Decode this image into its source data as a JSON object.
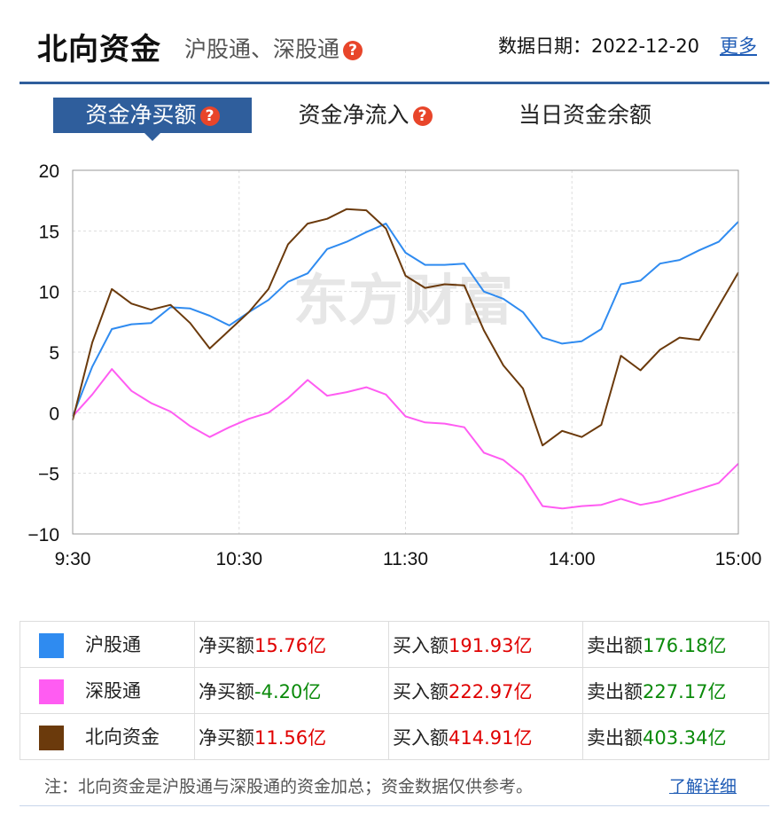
{
  "header": {
    "title": "北向资金",
    "subtitle": "沪股通、深股通",
    "date_label": "数据日期：2022-12-20",
    "more": "更多"
  },
  "tabs": [
    {
      "label": "资金净买额",
      "help": "?",
      "active": true
    },
    {
      "label": "资金净流入",
      "help": "?",
      "active": false
    },
    {
      "label": "当日资金余额",
      "active": false
    }
  ],
  "watermark": "东方财富",
  "chart_data": {
    "type": "line",
    "x_ticks": [
      "9:30",
      "10:30",
      "11:30",
      "14:00",
      "15:00"
    ],
    "y_ticks": [
      "20",
      "15",
      "10",
      "5",
      "0",
      "−5",
      "−10"
    ],
    "ylim": [
      -10,
      20
    ],
    "grid": true,
    "series": [
      {
        "name": "沪股通",
        "color": "#2f8bf0",
        "values": [
          -0.3,
          3.8,
          6.9,
          7.3,
          7.4,
          8.7,
          8.6,
          8.0,
          7.2,
          8.3,
          9.3,
          10.8,
          11.5,
          13.5,
          14.1,
          14.9,
          15.6,
          13.2,
          12.2,
          12.2,
          12.3,
          10.0,
          9.4,
          8.3,
          6.2,
          5.7,
          5.9,
          6.9,
          10.6,
          10.9,
          12.3,
          12.6,
          13.4,
          14.1,
          15.76
        ]
      },
      {
        "name": "深股通",
        "color": "#ff5cf2",
        "values": [
          -0.3,
          1.5,
          3.6,
          1.8,
          0.8,
          0.1,
          -1.1,
          -2.0,
          -1.2,
          -0.5,
          0.0,
          1.2,
          2.7,
          1.4,
          1.7,
          2.1,
          1.5,
          -0.3,
          -0.8,
          -0.9,
          -1.2,
          -3.3,
          -3.9,
          -5.2,
          -7.7,
          -7.9,
          -7.7,
          -7.6,
          -7.1,
          -7.6,
          -7.3,
          -6.8,
          -6.3,
          -5.8,
          -4.2
        ]
      },
      {
        "name": "北向资金",
        "color": "#6b3a0c",
        "values": [
          -0.6,
          5.8,
          10.2,
          9.0,
          8.5,
          8.9,
          7.4,
          5.3,
          6.8,
          8.3,
          10.2,
          13.9,
          15.6,
          16.0,
          16.8,
          16.7,
          15.2,
          11.3,
          10.3,
          10.6,
          10.5,
          6.8,
          3.9,
          2.0,
          -2.7,
          -1.5,
          -2.0,
          -1.0,
          4.7,
          3.5,
          5.2,
          6.2,
          6.0,
          8.8,
          11.56
        ]
      }
    ]
  },
  "legend": [
    {
      "name": "沪股通",
      "color": "#2f8bf0",
      "net_label": "净买额",
      "net": "15.76亿",
      "buy_label": "买入额",
      "buy": "191.93亿",
      "sell_label": "卖出额",
      "sell": "176.18亿"
    },
    {
      "name": "深股通",
      "color": "#ff5cf2",
      "net_label": "净买额",
      "net": "-4.20亿",
      "buy_label": "买入额",
      "buy": "222.97亿",
      "sell_label": "卖出额",
      "sell": "227.17亿"
    },
    {
      "name": "北向资金",
      "color": "#6b3a0c",
      "net_label": "净买额",
      "net": "11.56亿",
      "buy_label": "买入额",
      "buy": "414.91亿",
      "sell_label": "卖出额",
      "sell": "403.34亿"
    }
  ],
  "footer": {
    "note": "注：北向资金是沪股通与深股通的资金加总；资金数据仅供参考。",
    "link": "了解详细"
  }
}
